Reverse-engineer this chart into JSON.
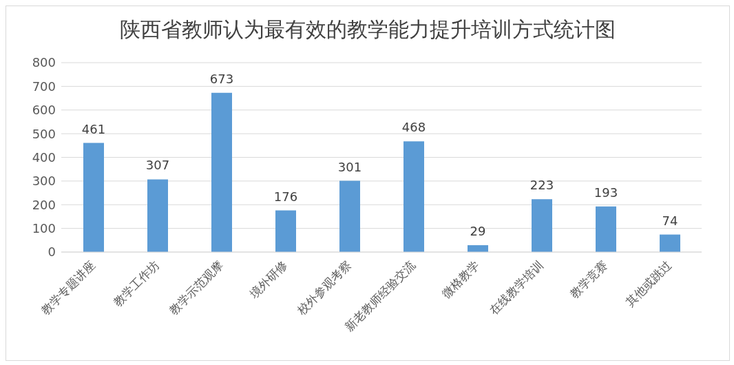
{
  "chart_data": {
    "type": "bar",
    "title": "陕西省教师认为最有效的教学能力提升培训方式统计图",
    "categories": [
      "教学专题讲座",
      "教学工作坊",
      "教学示范观摩",
      "境外研修",
      "校外参观考察",
      "新老教师经验交流",
      "微格教学",
      "在线教学培训",
      "教学竞赛",
      "其他或跳过"
    ],
    "values": [
      461,
      307,
      673,
      176,
      301,
      468,
      29,
      223,
      193,
      74
    ],
    "color": "#5b9bd5",
    "ylim": [
      0,
      800
    ],
    "yticks": [
      0,
      100,
      200,
      300,
      400,
      500,
      600,
      700,
      800
    ],
    "grid": "y",
    "data_labels": true
  }
}
